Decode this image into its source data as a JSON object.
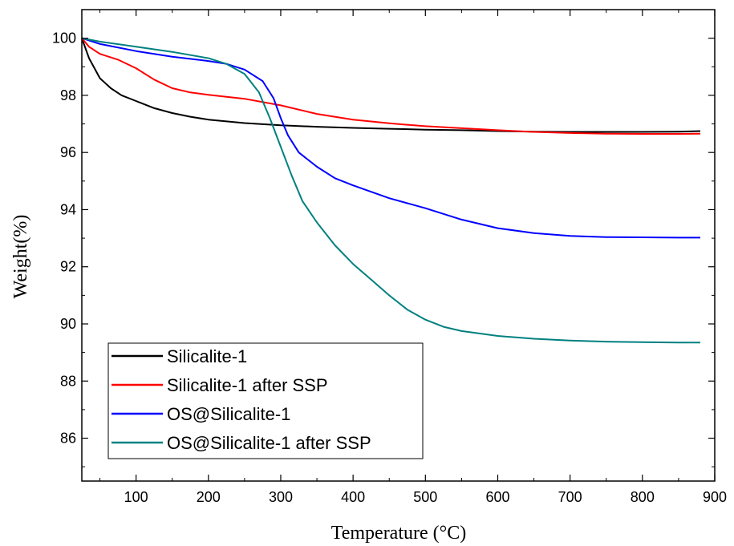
{
  "chart_data": {
    "type": "line",
    "title": "",
    "xlabel": "Temperature (°C)",
    "ylabel": "Weight(%)",
    "xlim": [
      25,
      900
    ],
    "ylim": [
      84.5,
      101
    ],
    "xticks": [
      100,
      200,
      300,
      400,
      500,
      600,
      700,
      800,
      900
    ],
    "yticks": [
      86,
      88,
      90,
      92,
      94,
      96,
      98,
      100
    ],
    "grid": false,
    "legend_position": "bottom-left",
    "series": [
      {
        "name": "Silicalite-1",
        "color": "#000000",
        "x": [
          25,
          35,
          50,
          65,
          80,
          100,
          125,
          150,
          175,
          200,
          250,
          300,
          350,
          400,
          450,
          500,
          550,
          600,
          650,
          700,
          750,
          800,
          850,
          880
        ],
        "y": [
          100,
          99.3,
          98.6,
          98.25,
          98.0,
          97.8,
          97.55,
          97.38,
          97.25,
          97.15,
          97.03,
          96.95,
          96.9,
          96.86,
          96.83,
          96.8,
          96.78,
          96.75,
          96.73,
          96.72,
          96.72,
          96.72,
          96.73,
          96.75
        ]
      },
      {
        "name": "Silicalite-1 after SSP",
        "color": "#ff0000",
        "x": [
          25,
          35,
          50,
          75,
          100,
          125,
          150,
          175,
          200,
          250,
          300,
          350,
          400,
          450,
          500,
          550,
          600,
          650,
          700,
          750,
          800,
          850,
          880
        ],
        "y": [
          100,
          99.7,
          99.45,
          99.25,
          98.95,
          98.55,
          98.25,
          98.1,
          98.02,
          97.88,
          97.65,
          97.35,
          97.15,
          97.02,
          96.92,
          96.85,
          96.78,
          96.72,
          96.68,
          96.66,
          96.65,
          96.65,
          96.66
        ]
      },
      {
        "name": "OS@Silicalite-1",
        "color": "#0000ff",
        "x": [
          25,
          50,
          100,
          150,
          200,
          225,
          250,
          275,
          290,
          300,
          310,
          325,
          350,
          375,
          400,
          450,
          500,
          550,
          600,
          650,
          700,
          750,
          800,
          850,
          880
        ],
        "y": [
          100,
          99.8,
          99.55,
          99.35,
          99.2,
          99.1,
          98.9,
          98.5,
          97.9,
          97.2,
          96.6,
          96.0,
          95.5,
          95.1,
          94.85,
          94.4,
          94.05,
          93.65,
          93.35,
          93.18,
          93.08,
          93.04,
          93.03,
          93.02,
          93.02
        ]
      },
      {
        "name": "OS@Silicalite-1 after SSP",
        "color": "#008080",
        "x": [
          25,
          50,
          100,
          150,
          200,
          225,
          250,
          270,
          285,
          300,
          315,
          330,
          350,
          375,
          400,
          425,
          450,
          475,
          500,
          525,
          550,
          600,
          650,
          700,
          750,
          800,
          850,
          880
        ],
        "y": [
          100,
          99.88,
          99.7,
          99.52,
          99.3,
          99.1,
          98.75,
          98.1,
          97.2,
          96.2,
          95.2,
          94.3,
          93.55,
          92.75,
          92.1,
          91.55,
          91.0,
          90.5,
          90.15,
          89.9,
          89.75,
          89.58,
          89.48,
          89.42,
          89.38,
          89.36,
          89.35,
          89.35
        ]
      }
    ]
  }
}
